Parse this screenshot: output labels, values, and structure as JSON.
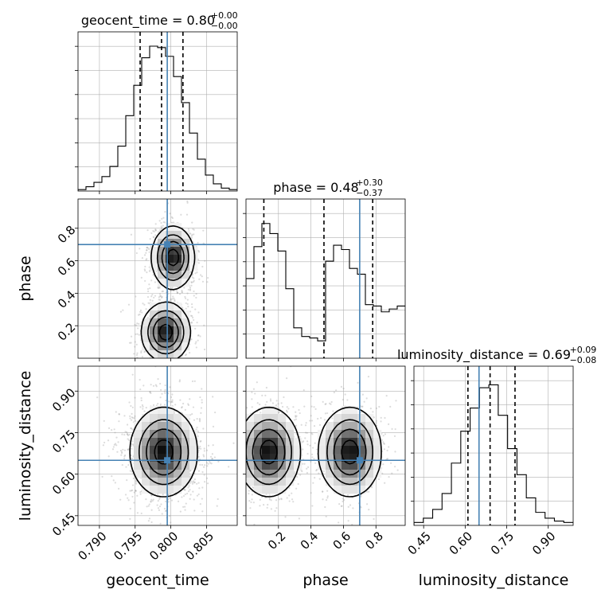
{
  "chart_data": {
    "type": "corner",
    "parameters": [
      {
        "name": "geocent_time",
        "axis_label": "geocent_time",
        "title": {
          "text": "geocent_time = 0.80",
          "plus": "+0.00",
          "minus": "−0.00"
        },
        "range": [
          0.787,
          0.8093
        ],
        "ticks": [
          0.79,
          0.795,
          0.8,
          0.805
        ],
        "tick_labels": [
          "0.790",
          "0.795",
          "0.800",
          "0.805"
        ],
        "quantiles": [
          0.7957,
          0.7987,
          0.8017
        ],
        "truth": 0.7995,
        "hist": [
          0.01,
          0.03,
          0.06,
          0.1,
          0.17,
          0.31,
          0.52,
          0.73,
          0.92,
          1.0,
          0.99,
          0.93,
          0.79,
          0.61,
          0.4,
          0.22,
          0.11,
          0.05,
          0.02,
          0.01
        ]
      },
      {
        "name": "phase",
        "axis_label": "phase",
        "title": {
          "text": "phase = 0.48",
          "plus": "+0.30",
          "minus": "−0.37"
        },
        "range": [
          0.0,
          0.98
        ],
        "ticks": [
          0.2,
          0.4,
          0.6,
          0.8
        ],
        "tick_labels": [
          "0.2",
          "0.4",
          "0.6",
          "0.8"
        ],
        "quantiles": [
          0.11,
          0.48,
          0.78
        ],
        "truth": 0.7,
        "hist": [
          0.55,
          0.77,
          0.93,
          0.86,
          0.74,
          0.48,
          0.21,
          0.15,
          0.14,
          0.12,
          0.67,
          0.78,
          0.75,
          0.62,
          0.58,
          0.37,
          0.36,
          0.32,
          0.34,
          0.36
        ]
      },
      {
        "name": "luminosity_distance",
        "axis_label": "luminosity_distance",
        "title": {
          "text": "luminosity_distance = 0.69",
          "plus": "+0.09",
          "minus": "−0.08"
        },
        "range": [
          0.415,
          0.99
        ],
        "ticks": [
          0.45,
          0.6,
          0.75,
          0.9
        ],
        "tick_labels": [
          "0.45",
          "0.60",
          "0.75",
          "0.90"
        ],
        "quantiles": [
          0.61,
          0.69,
          0.78
        ],
        "truth": 0.65,
        "hist": [
          0.02,
          0.05,
          0.11,
          0.22,
          0.43,
          0.65,
          0.81,
          0.95,
          0.97,
          0.76,
          0.53,
          0.35,
          0.19,
          0.09,
          0.05,
          0.03,
          0.02
        ]
      }
    ],
    "truth_color": "#4682b4",
    "grid": true,
    "levels_2d": [
      "0.5 sigma",
      "1 sigma",
      "1.5 sigma",
      "2 sigma"
    ]
  }
}
